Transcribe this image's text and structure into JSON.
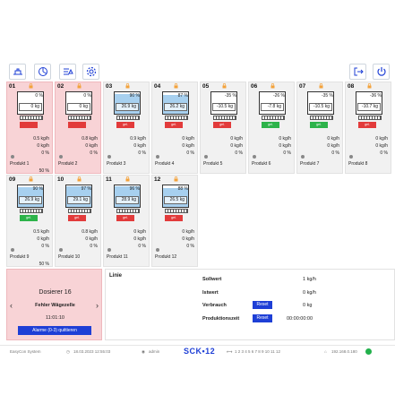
{
  "toolbar": {
    "left_icons": [
      "scale-settings-icon",
      "chart-icon",
      "list-settings-icon",
      "gear-icon"
    ],
    "right_icons": [
      "logout-icon",
      "power-icon"
    ]
  },
  "dosers": [
    {
      "num": "01",
      "top": "0 %",
      "mid": "0 kg",
      "fill": 0,
      "status": "",
      "status_color": "#e23b3b",
      "alarm": true,
      "rate": "0.5 kg/h",
      "kg": "0 kg/h",
      "pct": "0 %",
      "product": "Produkt 1",
      "share": "50 %"
    },
    {
      "num": "02",
      "top": "0 %",
      "mid": "0 kg",
      "fill": 0,
      "status": "",
      "status_color": "#e23b3b",
      "alarm": true,
      "rate": "0.8 kg/h",
      "kg": "0 kg/h",
      "pct": "0 %",
      "product": "Produkt 2",
      "share": ""
    },
    {
      "num": "03",
      "top": "90 %",
      "mid": "26.9 kg",
      "fill": 0.9,
      "status": "gel.",
      "status_color": "#e23b3b",
      "alarm": false,
      "rate": "0.9 kg/h",
      "kg": "0 kg/h",
      "pct": "0 %",
      "product": "Produkt 3",
      "share": ""
    },
    {
      "num": "04",
      "top": "87 %",
      "mid": "26.2 kg",
      "fill": 0.87,
      "status": "gel.",
      "status_color": "#e23b3b",
      "alarm": false,
      "rate": "0 kg/h",
      "kg": "0 kg/h",
      "pct": "0 %",
      "product": "Produkt 4",
      "share": ""
    },
    {
      "num": "05",
      "top": "-35 %",
      "mid": "-10.5 kg",
      "fill": 0,
      "status": "gel.",
      "status_color": "#e23b3b",
      "alarm": false,
      "rate": "0 kg/h",
      "kg": "0 kg/h",
      "pct": "0 %",
      "product": "Produkt 5",
      "share": ""
    },
    {
      "num": "06",
      "top": "-26 %",
      "mid": "-7.8 kg",
      "fill": 0,
      "status": "gel.",
      "status_color": "#2db34a",
      "alarm": false,
      "rate": "0 kg/h",
      "kg": "0 kg/h",
      "pct": "0 %",
      "product": "Produkt 6",
      "share": ""
    },
    {
      "num": "07",
      "top": "-35 %",
      "mid": "-10.5 kg",
      "fill": 0,
      "status": "gel.",
      "status_color": "#2db34a",
      "alarm": false,
      "rate": "0 kg/h",
      "kg": "0 kg/h",
      "pct": "0 %",
      "product": "Produkt 7",
      "share": ""
    },
    {
      "num": "08",
      "top": "-36 %",
      "mid": "-10.7 kg",
      "fill": 0,
      "status": "gel.",
      "status_color": "#e23b3b",
      "alarm": false,
      "rate": "0 kg/h",
      "kg": "0 kg/h",
      "pct": "0 %",
      "product": "Produkt 8",
      "share": ""
    },
    {
      "num": "09",
      "top": "90 %",
      "mid": "26.9 kg",
      "fill": 0.9,
      "status": "gel.",
      "status_color": "#2db34a",
      "alarm": false,
      "rate": "0.5 kg/h",
      "kg": "0 kg/h",
      "pct": "0 %",
      "product": "Produkt 9",
      "share": "50 %"
    },
    {
      "num": "10",
      "top": "97 %",
      "mid": "29.1 kg",
      "fill": 0.97,
      "status": "gel.",
      "status_color": "#e23b3b",
      "alarm": false,
      "rate": "0.8 kg/h",
      "kg": "0 kg/h",
      "pct": "0 %",
      "product": "Produkt 10",
      "share": ""
    },
    {
      "num": "11",
      "top": "96 %",
      "mid": "28.9 kg",
      "fill": 0.96,
      "status": "gel.",
      "status_color": "#e23b3b",
      "alarm": false,
      "rate": "0 kg/h",
      "kg": "0 kg/h",
      "pct": "0 %",
      "product": "Produkt 11",
      "share": ""
    },
    {
      "num": "12",
      "top": "88 %",
      "mid": "26.5 kg",
      "fill": 0.88,
      "status": "gel.",
      "status_color": "#e23b3b",
      "alarm": false,
      "rate": "0 kg/h",
      "kg": "0 kg/h",
      "pct": "0 %",
      "product": "Produkt 12",
      "share": ""
    }
  ],
  "doser_panel": {
    "title": "Dosierer  16",
    "error": "Fehler Wägezelle",
    "time": "11:01:10",
    "ack_label": "Alarme (0-3) quittieren",
    "prev_icon": "chevron-left-icon",
    "next_icon": "chevron-right-icon"
  },
  "line_panel": {
    "title": "Linie",
    "sollwert_label": "Sollwert",
    "sollwert_value": "1 kg/h",
    "istwert_label": "Istwert",
    "istwert_value": "0 kg/h",
    "verbrauch_label": "Verbrauch",
    "verbrauch_value": "0 kg",
    "produktionszeit_label": "Produktionszeit",
    "produktionszeit_value": "00:00:00:00",
    "reset_label": "Reset"
  },
  "statusbar": {
    "system": "EasyCon System",
    "datetime": "18.03.2023 12:55:03",
    "user": "admin",
    "logo": "SCK•12",
    "numbers": "1 2 3 4 5 6 7 8 9 10 11 12",
    "ip": "192.168.0.180",
    "conn_color": "#22b14c"
  }
}
